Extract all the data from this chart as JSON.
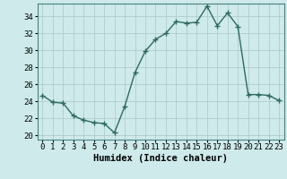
{
  "x": [
    0,
    1,
    2,
    3,
    4,
    5,
    6,
    7,
    8,
    9,
    10,
    11,
    12,
    13,
    14,
    15,
    16,
    17,
    18,
    19,
    20,
    21,
    22,
    23
  ],
  "y": [
    24.7,
    23.9,
    23.8,
    22.3,
    21.8,
    21.5,
    21.4,
    20.3,
    23.4,
    27.4,
    29.9,
    31.3,
    32.0,
    33.4,
    33.2,
    33.3,
    35.2,
    32.9,
    34.4,
    32.8,
    24.8,
    24.8,
    24.7,
    24.1
  ],
  "line_color": "#2e6b5e",
  "marker": "+",
  "markersize": 4,
  "linewidth": 1.0,
  "bg_color": "#ceeaea",
  "grid_color": "#b0cccc",
  "xlabel": "Humidex (Indice chaleur)",
  "xlim": [
    -0.5,
    23.5
  ],
  "ylim": [
    19.5,
    35.5
  ],
  "yticks": [
    20,
    22,
    24,
    26,
    28,
    30,
    32,
    34
  ],
  "xticks": [
    0,
    1,
    2,
    3,
    4,
    5,
    6,
    7,
    8,
    9,
    10,
    11,
    12,
    13,
    14,
    15,
    16,
    17,
    18,
    19,
    20,
    21,
    22,
    23
  ],
  "xlabel_fontsize": 7.5,
  "tick_fontsize": 6.5,
  "spine_color": "#4a8080"
}
